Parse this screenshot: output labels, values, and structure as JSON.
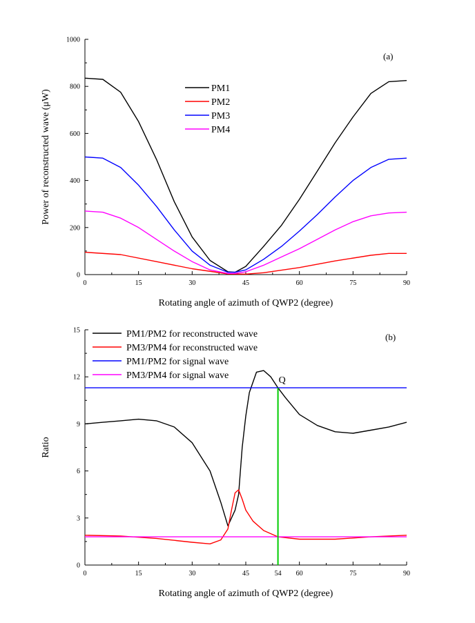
{
  "chart_data": [
    {
      "type": "line",
      "panel_label": "(a)",
      "xlabel": "Rotating angle of azimuth of QWP2 (degree)",
      "ylabel": "Power of reconstructed wave (μW)",
      "xlim": [
        0,
        90
      ],
      "ylim": [
        0,
        1000
      ],
      "xticks": [
        0,
        15,
        30,
        45,
        60,
        75,
        90
      ],
      "yticks": [
        0,
        200,
        400,
        600,
        800,
        1000
      ],
      "legend_position": "upper-center",
      "series": [
        {
          "name": "PM1",
          "color": "#000000",
          "x": [
            0,
            5,
            10,
            15,
            20,
            25,
            30,
            35,
            40,
            42,
            45,
            50,
            55,
            60,
            65,
            70,
            75,
            80,
            85,
            90
          ],
          "y": [
            835,
            830,
            775,
            650,
            490,
            310,
            160,
            60,
            12,
            10,
            35,
            120,
            210,
            320,
            440,
            560,
            670,
            770,
            820,
            825
          ]
        },
        {
          "name": "PM2",
          "color": "#ff0000",
          "x": [
            0,
            10,
            20,
            30,
            40,
            45,
            50,
            60,
            70,
            80,
            85,
            90
          ],
          "y": [
            95,
            85,
            55,
            25,
            3,
            2,
            8,
            30,
            58,
            82,
            90,
            90
          ]
        },
        {
          "name": "PM3",
          "color": "#0000ff",
          "x": [
            0,
            5,
            10,
            15,
            20,
            25,
            30,
            35,
            40,
            42,
            45,
            50,
            55,
            60,
            65,
            70,
            75,
            80,
            85,
            90
          ],
          "y": [
            500,
            495,
            455,
            380,
            290,
            190,
            100,
            40,
            10,
            10,
            20,
            65,
            120,
            185,
            255,
            330,
            400,
            455,
            490,
            495
          ]
        },
        {
          "name": "PM4",
          "color": "#ff00ff",
          "x": [
            0,
            5,
            10,
            15,
            20,
            25,
            30,
            35,
            40,
            42,
            45,
            50,
            55,
            60,
            65,
            70,
            75,
            80,
            85,
            90
          ],
          "y": [
            270,
            265,
            240,
            200,
            150,
            100,
            55,
            20,
            5,
            5,
            12,
            40,
            75,
            110,
            150,
            190,
            225,
            250,
            262,
            265
          ]
        }
      ]
    },
    {
      "type": "line",
      "panel_label": "(b)",
      "xlabel": "Rotating angle of azimuth of QWP2 (degree)",
      "ylabel": "Ratio",
      "xlim": [
        0,
        90
      ],
      "ylim": [
        0,
        15
      ],
      "xticks": [
        0,
        15,
        30,
        45,
        54,
        60,
        75,
        90
      ],
      "yticks": [
        0,
        3,
        6,
        9,
        12,
        15
      ],
      "legend_position": "upper-left",
      "annotation": {
        "text": "Q",
        "x": 54,
        "y": 11.3
      },
      "vertical_line": {
        "x": 54,
        "y": [
          0,
          11.3
        ],
        "color": "#00cc00"
      },
      "series": [
        {
          "name": "PM1/PM2 for reconstructed wave",
          "color": "#000000",
          "x": [
            0,
            5,
            10,
            15,
            20,
            25,
            30,
            35,
            38,
            40,
            42,
            43,
            44,
            45,
            46,
            48,
            50,
            52,
            54,
            56,
            60,
            65,
            70,
            75,
            80,
            85,
            90
          ],
          "y": [
            9.0,
            9.1,
            9.2,
            9.3,
            9.2,
            8.8,
            7.8,
            6.0,
            4.0,
            2.5,
            3.5,
            4.5,
            7.5,
            9.5,
            11.0,
            12.3,
            12.4,
            12.0,
            11.3,
            10.7,
            9.6,
            8.9,
            8.5,
            8.4,
            8.6,
            8.8,
            9.1
          ]
        },
        {
          "name": "PM3/PM4 for reconstructed wave",
          "color": "#ff0000",
          "x": [
            0,
            10,
            20,
            30,
            35,
            38,
            40,
            41,
            42,
            43,
            44,
            45,
            47,
            50,
            54,
            60,
            70,
            80,
            90
          ],
          "y": [
            1.9,
            1.85,
            1.7,
            1.45,
            1.35,
            1.6,
            2.3,
            3.5,
            4.6,
            4.8,
            4.2,
            3.5,
            2.8,
            2.2,
            1.8,
            1.65,
            1.65,
            1.8,
            1.9
          ]
        },
        {
          "name": "PM1/PM2 for signal wave",
          "color": "#0000ff",
          "x": [
            0,
            90
          ],
          "y": [
            11.3,
            11.3
          ]
        },
        {
          "name": "PM3/PM4 for signal wave",
          "color": "#ff00ff",
          "x": [
            0,
            90
          ],
          "y": [
            1.8,
            1.8
          ]
        }
      ]
    }
  ]
}
